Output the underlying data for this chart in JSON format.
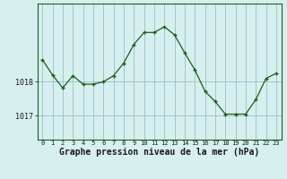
{
  "x": [
    0,
    1,
    2,
    3,
    4,
    5,
    6,
    7,
    8,
    9,
    10,
    11,
    12,
    13,
    14,
    15,
    16,
    17,
    18,
    19,
    20,
    21,
    22,
    23
  ],
  "y": [
    1018.65,
    1018.2,
    1017.82,
    1018.18,
    1017.93,
    1017.93,
    1018.0,
    1018.18,
    1018.55,
    1019.1,
    1019.45,
    1019.45,
    1019.62,
    1019.38,
    1018.85,
    1018.35,
    1017.72,
    1017.42,
    1017.05,
    1017.05,
    1017.05,
    1017.48,
    1018.1,
    1018.25
  ],
  "line_color": "#1e5c1e",
  "marker_color": "#1e5c1e",
  "bg_color": "#d7efef",
  "grid_color": "#9fc8c8",
  "xlabel": "Graphe pression niveau de la mer (hPa)",
  "xlabel_fontsize": 7,
  "ylabel_ticks": [
    1017,
    1018
  ],
  "ylim": [
    1016.3,
    1020.3
  ],
  "xlim": [
    -0.5,
    23.5
  ],
  "tick_labels": [
    "0",
    "1",
    "2",
    "3",
    "4",
    "5",
    "6",
    "7",
    "8",
    "9",
    "10",
    "11",
    "12",
    "13",
    "14",
    "15",
    "16",
    "17",
    "18",
    "19",
    "20",
    "21",
    "22",
    "23"
  ]
}
